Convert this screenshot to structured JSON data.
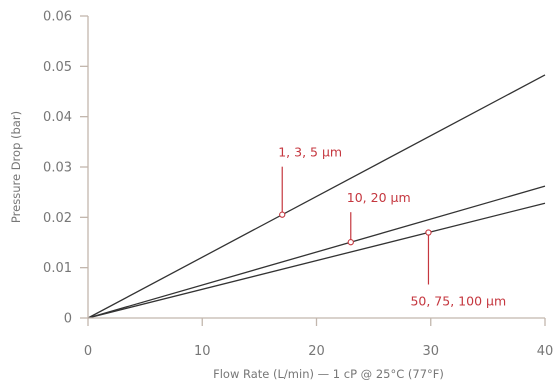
{
  "chart_data": {
    "type": "line",
    "title": "",
    "xlabel": "Flow Rate (L/min) — 1 cP @ 25°C (77°F)",
    "ylabel": "Pressure Drop (bar)",
    "xlim": [
      0,
      40
    ],
    "ylim": [
      0,
      0.06
    ],
    "x_ticks": [
      0,
      10,
      20,
      30,
      40
    ],
    "x_tick_labels": [
      "0",
      "10",
      "20",
      "30",
      "40"
    ],
    "y_ticks": [
      0,
      0.01,
      0.02,
      0.03,
      0.04,
      0.05,
      0.06
    ],
    "y_tick_labels": [
      "0",
      "0.01",
      "0.02",
      "0.03",
      "0.04",
      "0.05",
      "0.06"
    ],
    "grid": false,
    "series": [
      {
        "name": "1, 3, 5 µm",
        "x": [
          0,
          40
        ],
        "y": [
          0,
          0.0483
        ]
      },
      {
        "name": "10, 20 µm",
        "x": [
          0,
          40
        ],
        "y": [
          0,
          0.0262
        ]
      },
      {
        "name": "50, 75, 100 µm",
        "x": [
          0,
          40
        ],
        "y": [
          0,
          0.0228
        ]
      }
    ],
    "annotations": [
      {
        "text": "1, 3, 5 µm",
        "series": 0,
        "at_x": 17
      },
      {
        "text": "10, 20 µm",
        "series": 1,
        "at_x": 23
      },
      {
        "text": "50, 75, 100 µm",
        "series": 2,
        "at_x": 29.8
      }
    ],
    "colors": {
      "axis": "#c2b6ad",
      "series_line": "#333333",
      "annotation": "#c5373f",
      "text": "#777777"
    }
  }
}
